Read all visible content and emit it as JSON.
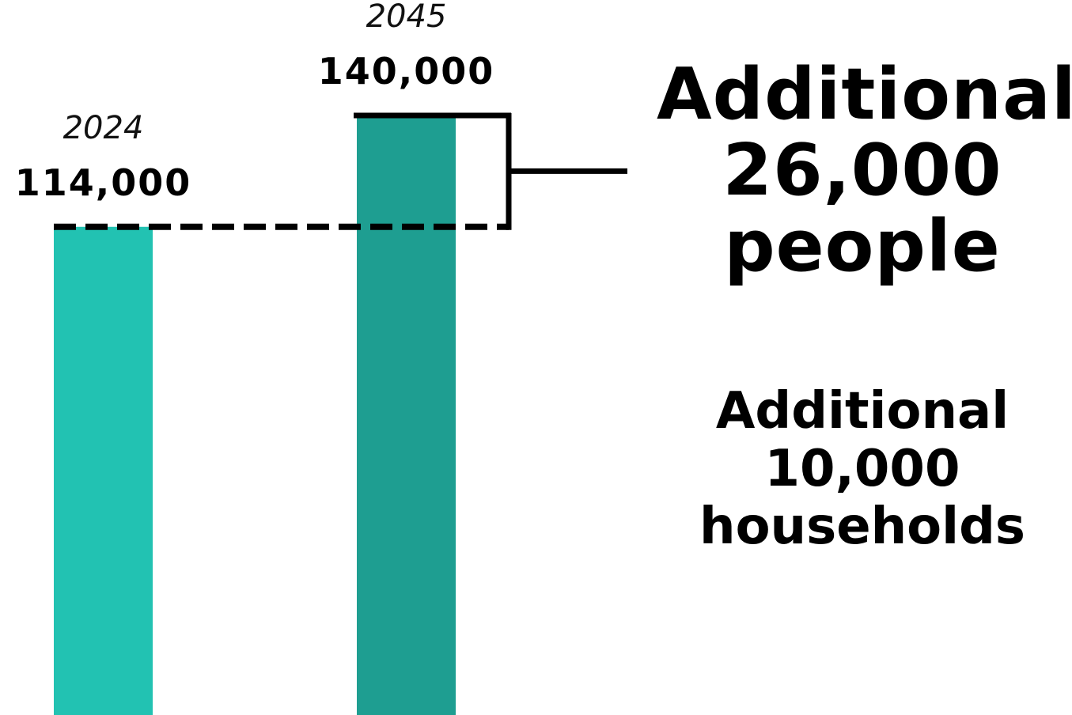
{
  "chart_data": {
    "type": "bar",
    "categories": [
      "2024",
      "2045"
    ],
    "values": [
      114000,
      140000
    ],
    "value_labels": [
      "114,000",
      "140,000"
    ],
    "colors": [
      "#22C2B2",
      "#1E9E91"
    ],
    "difference": 26000,
    "xlabel": "",
    "ylabel": "",
    "ylim": [
      0,
      140000
    ],
    "grid": false,
    "legend": "none"
  },
  "annotations": {
    "people": [
      "Additional",
      "26,000",
      "people"
    ],
    "households": [
      "Additional",
      "10,000",
      "households"
    ]
  }
}
